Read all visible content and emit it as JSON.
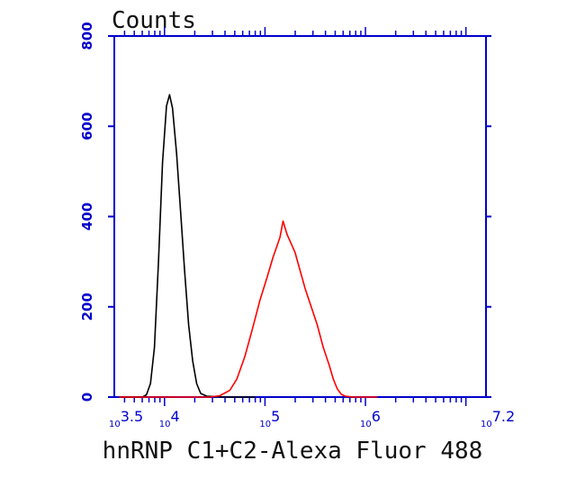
{
  "chart_data": {
    "type": "line",
    "title": "",
    "ylabel": "Counts",
    "xlabel": "hnRNP C1+C2-Alexa Fluor 488",
    "x_scale": "log10",
    "xlim_log10": [
      3.5,
      7.2
    ],
    "ylim": [
      0,
      800
    ],
    "yticks": [
      0,
      200,
      400,
      600,
      800
    ],
    "xtick_labels": [
      {
        "base": "10",
        "exp": "3.5",
        "log10": 3.5
      },
      {
        "base": "10",
        "exp": "4",
        "log10": 4
      },
      {
        "base": "10",
        "exp": "5",
        "log10": 5
      },
      {
        "base": "10",
        "exp": "6",
        "log10": 6
      },
      {
        "base": "10",
        "exp": "7.2",
        "log10": 7.2
      }
    ],
    "grid": false,
    "legend": "none",
    "axis_color": "#0000cc",
    "series": [
      {
        "color": "#000000",
        "points": [
          [
            3.55,
            0
          ],
          [
            3.78,
            0
          ],
          [
            3.82,
            5
          ],
          [
            3.86,
            30
          ],
          [
            3.9,
            110
          ],
          [
            3.94,
            300
          ],
          [
            3.98,
            520
          ],
          [
            4.02,
            645
          ],
          [
            4.05,
            670
          ],
          [
            4.08,
            640
          ],
          [
            4.12,
            540
          ],
          [
            4.16,
            410
          ],
          [
            4.2,
            280
          ],
          [
            4.24,
            160
          ],
          [
            4.28,
            80
          ],
          [
            4.32,
            30
          ],
          [
            4.36,
            8
          ],
          [
            4.42,
            2
          ],
          [
            4.6,
            0
          ],
          [
            4.9,
            0
          ]
        ]
      },
      {
        "color": "#ff0000",
        "points": [
          [
            3.55,
            0
          ],
          [
            4.45,
            0
          ],
          [
            4.55,
            3
          ],
          [
            4.65,
            15
          ],
          [
            4.72,
            40
          ],
          [
            4.8,
            90
          ],
          [
            4.88,
            155
          ],
          [
            4.95,
            215
          ],
          [
            5.02,
            265
          ],
          [
            5.08,
            310
          ],
          [
            5.12,
            335
          ],
          [
            5.15,
            355
          ],
          [
            5.18,
            390
          ],
          [
            5.22,
            360
          ],
          [
            5.26,
            340
          ],
          [
            5.3,
            320
          ],
          [
            5.35,
            280
          ],
          [
            5.4,
            240
          ],
          [
            5.46,
            200
          ],
          [
            5.52,
            160
          ],
          [
            5.58,
            110
          ],
          [
            5.64,
            70
          ],
          [
            5.68,
            40
          ],
          [
            5.72,
            18
          ],
          [
            5.76,
            6
          ],
          [
            5.8,
            2
          ],
          [
            5.88,
            0
          ],
          [
            6.12,
            0
          ]
        ]
      }
    ]
  }
}
